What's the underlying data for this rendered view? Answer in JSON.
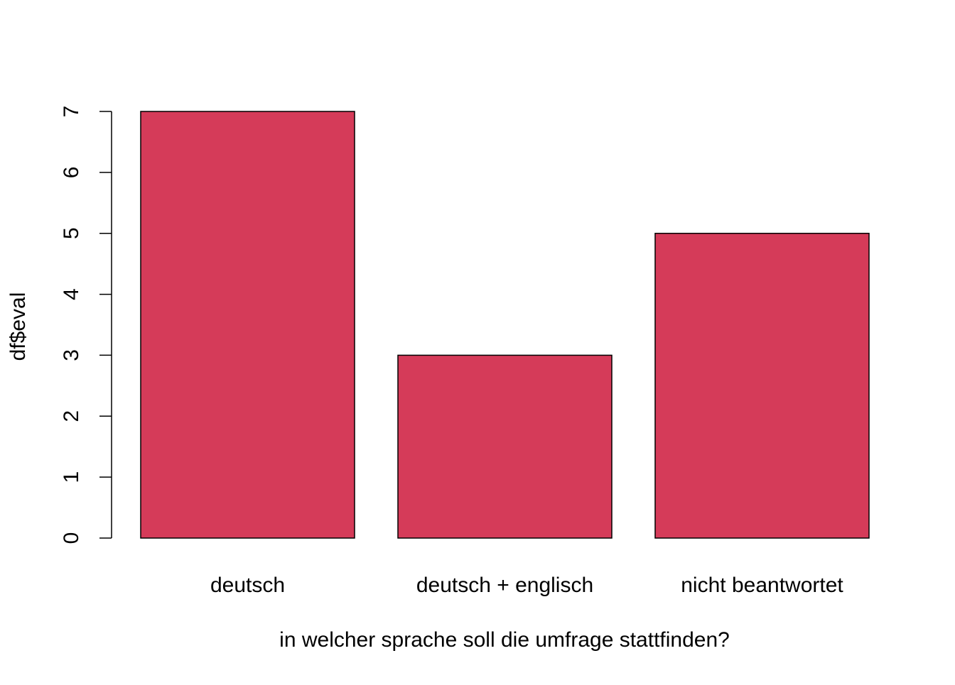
{
  "chart_data": {
    "type": "bar",
    "title": "",
    "xlabel": "in welcher sprache soll die umfrage stattfinden?",
    "ylabel": "df$eval",
    "categories": [
      "deutsch",
      "deutsch + englisch",
      "nicht beantwortet"
    ],
    "values": [
      7,
      3,
      5
    ],
    "yticks": [
      0,
      1,
      2,
      3,
      4,
      5,
      6,
      7
    ],
    "ylim": [
      0,
      7
    ],
    "grid": false,
    "legend": "none",
    "bar_color": "#D53B59",
    "bar_edge_color": "#000000"
  }
}
